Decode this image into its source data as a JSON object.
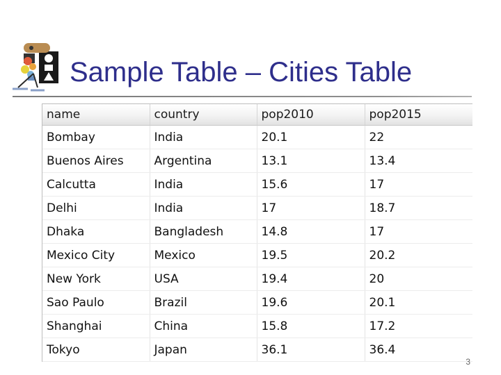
{
  "slide": {
    "title": "Sample Table – Cities Table",
    "page_number": "3"
  },
  "table": {
    "columns": [
      "name",
      "country",
      "pop2010",
      "pop2015"
    ],
    "rows": [
      [
        "Bombay",
        "India",
        "20.1",
        "22"
      ],
      [
        "Buenos Aires",
        "Argentina",
        "13.1",
        "13.4"
      ],
      [
        "Calcutta",
        "India",
        "15.6",
        "17"
      ],
      [
        "Delhi",
        "India",
        "17",
        "18.7"
      ],
      [
        "Dhaka",
        "Bangladesh",
        "14.8",
        "17"
      ],
      [
        "Mexico City",
        "Mexico",
        "19.5",
        "20.2"
      ],
      [
        "New York",
        "USA",
        "19.4",
        "20"
      ],
      [
        "Sao Paulo",
        "Brazil",
        "19.6",
        "20.1"
      ],
      [
        "Shanghai",
        "China",
        "15.8",
        "17.2"
      ],
      [
        "Tokyo",
        "Japan",
        "36.1",
        "36.4"
      ]
    ]
  }
}
